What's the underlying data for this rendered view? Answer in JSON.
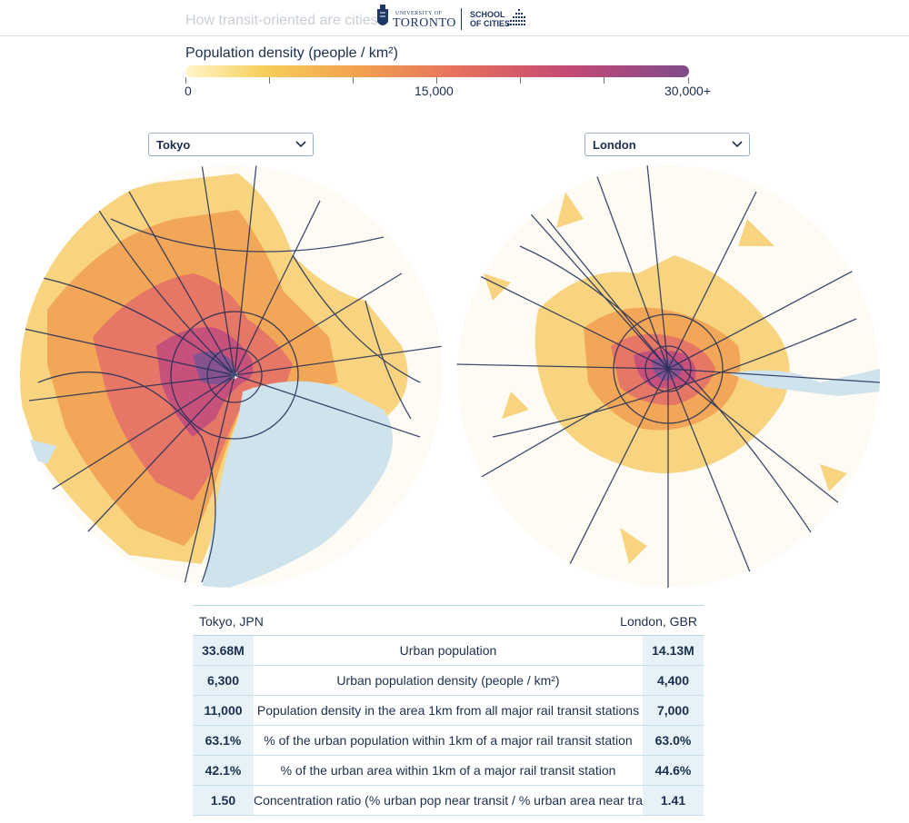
{
  "header": {
    "faded_title": "How transit-oriented are cities?",
    "logo_university": {
      "small": "UNIVERSITY OF",
      "big": "TORONTO"
    },
    "logo_school": {
      "line1": "SCHOOL",
      "line2": "OF CITIES"
    }
  },
  "legend": {
    "title": "Population density (people / km²)",
    "min_label": "0",
    "mid_label": "15,000",
    "max_label": "30,000+",
    "colors": [
      "#fff6c8",
      "#f7cd5a",
      "#f2a24f",
      "#e56f5e",
      "#c44a75",
      "#804b8b"
    ]
  },
  "left_city": {
    "selected": "Tokyo",
    "label": "Tokyo, JPN"
  },
  "right_city": {
    "selected": "London",
    "label": "London, GBR"
  },
  "table": {
    "rows": [
      {
        "left": "33.68M",
        "metric": "Urban population",
        "right": "14.13M"
      },
      {
        "left": "6,300",
        "metric": "Urban population density (people / km²)",
        "right": "4,400"
      },
      {
        "left": "11,000",
        "metric": "Population density in the area 1km from all major rail transit stations",
        "right": "7,000"
      },
      {
        "left": "63.1%",
        "metric": "% of the urban population within 1km of a major rail transit station",
        "right": "63.0%"
      },
      {
        "left": "42.1%",
        "metric": "% of the urban area within 1km of a major rail transit station",
        "right": "44.6%"
      },
      {
        "left": "1.50",
        "metric": "Concentration ratio (% urban pop near transit / % urban area near transit)",
        "right": "1.41"
      }
    ]
  },
  "colors": {
    "text": "#1b2f4e",
    "water": "#cfe3ec",
    "rail": "#1e2d57",
    "table_accent": "#e6f2f8"
  }
}
